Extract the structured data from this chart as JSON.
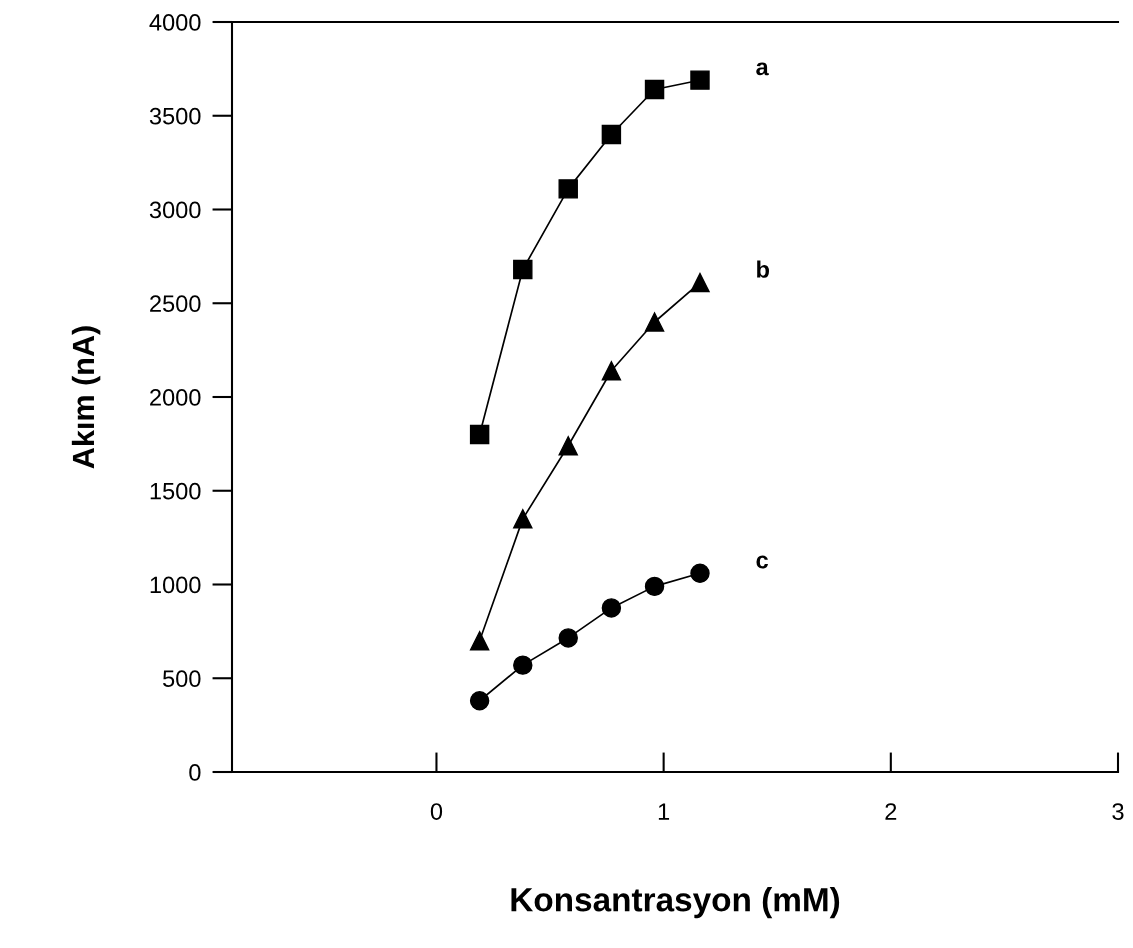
{
  "chart_data": {
    "type": "line",
    "xlabel": "Konsantrasyon (mM)",
    "ylabel": "Akım (nA)",
    "xlim": [
      -0.9,
      3
    ],
    "xticks": [
      0,
      1,
      2,
      3
    ],
    "ylim": [
      0,
      4000
    ],
    "yticks": [
      0,
      500,
      1000,
      1500,
      2000,
      2500,
      3000,
      3500,
      4000
    ],
    "grid": false,
    "legend": false,
    "series": [
      {
        "name": "a",
        "color": "#000000",
        "marker": "square",
        "x": [
          0.19,
          0.38,
          0.58,
          0.77,
          0.96,
          1.16
        ],
        "values": [
          1800,
          2680,
          3110,
          3400,
          3640,
          3690
        ]
      },
      {
        "name": "b",
        "color": "#000000",
        "marker": "triangle",
        "x": [
          0.19,
          0.38,
          0.58,
          0.77,
          0.96,
          1.16
        ],
        "values": [
          700,
          1350,
          1740,
          2140,
          2400,
          2610
        ]
      },
      {
        "name": "c",
        "color": "#000000",
        "marker": "circle",
        "x": [
          0.19,
          0.38,
          0.58,
          0.77,
          0.96,
          1.16
        ],
        "values": [
          380,
          570,
          715,
          875,
          990,
          1060
        ]
      }
    ]
  }
}
